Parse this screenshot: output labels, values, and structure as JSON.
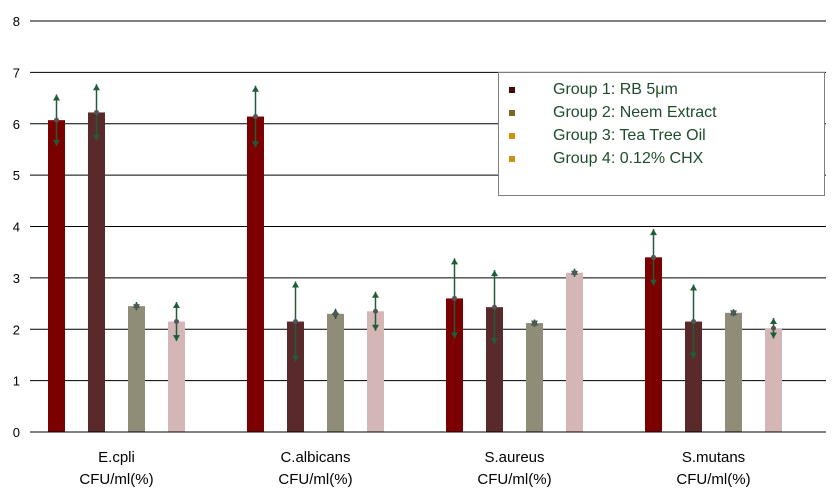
{
  "chart_data": {
    "type": "bar",
    "title": "",
    "xlabel": "",
    "ylabel": "",
    "ylim": [
      0,
      8
    ],
    "yticks": [
      0,
      1,
      2,
      3,
      4,
      5,
      6,
      7,
      8
    ],
    "grid": true,
    "legend_position": "top-right",
    "categories": [
      [
        "E.cpli",
        "CFU/ml(%)"
      ],
      [
        "C.albicans",
        "CFU/ml(%)"
      ],
      [
        "S.aureus",
        "CFU/ml(%)"
      ],
      [
        "S.mutans",
        "CFU/ml(%)"
      ]
    ],
    "series": [
      {
        "name": "Group 1: RB 5μm",
        "color": "#7b0000",
        "values": [
          6.07,
          6.14,
          2.6,
          3.4
        ],
        "errors": [
          0.5,
          0.6,
          0.78,
          0.55
        ]
      },
      {
        "name": "Group 2: Neem Extract",
        "color": "#5a2a2a",
        "values": [
          6.22,
          2.15,
          2.43,
          2.15
        ],
        "errors": [
          0.55,
          0.78,
          0.72,
          0.72
        ]
      },
      {
        "name": "Group 3: Tea Tree Oil",
        "color": "#8f8c78",
        "values": [
          2.45,
          2.3,
          2.12,
          2.32
        ],
        "errors": [
          0.08,
          0.1,
          0.07,
          0.07
        ]
      },
      {
        "name": "Group 4: 0.12% CHX",
        "color": "#d4b6b6",
        "values": [
          2.15,
          2.35,
          3.1,
          2.02
        ],
        "errors": [
          0.38,
          0.38,
          0.08,
          0.2
        ]
      }
    ],
    "legend_swatch_colors": [
      "#4a0b0b",
      "#7a6a20",
      "#c79512",
      "#c79512"
    ],
    "error_bar_color": "#1f5d3a"
  }
}
